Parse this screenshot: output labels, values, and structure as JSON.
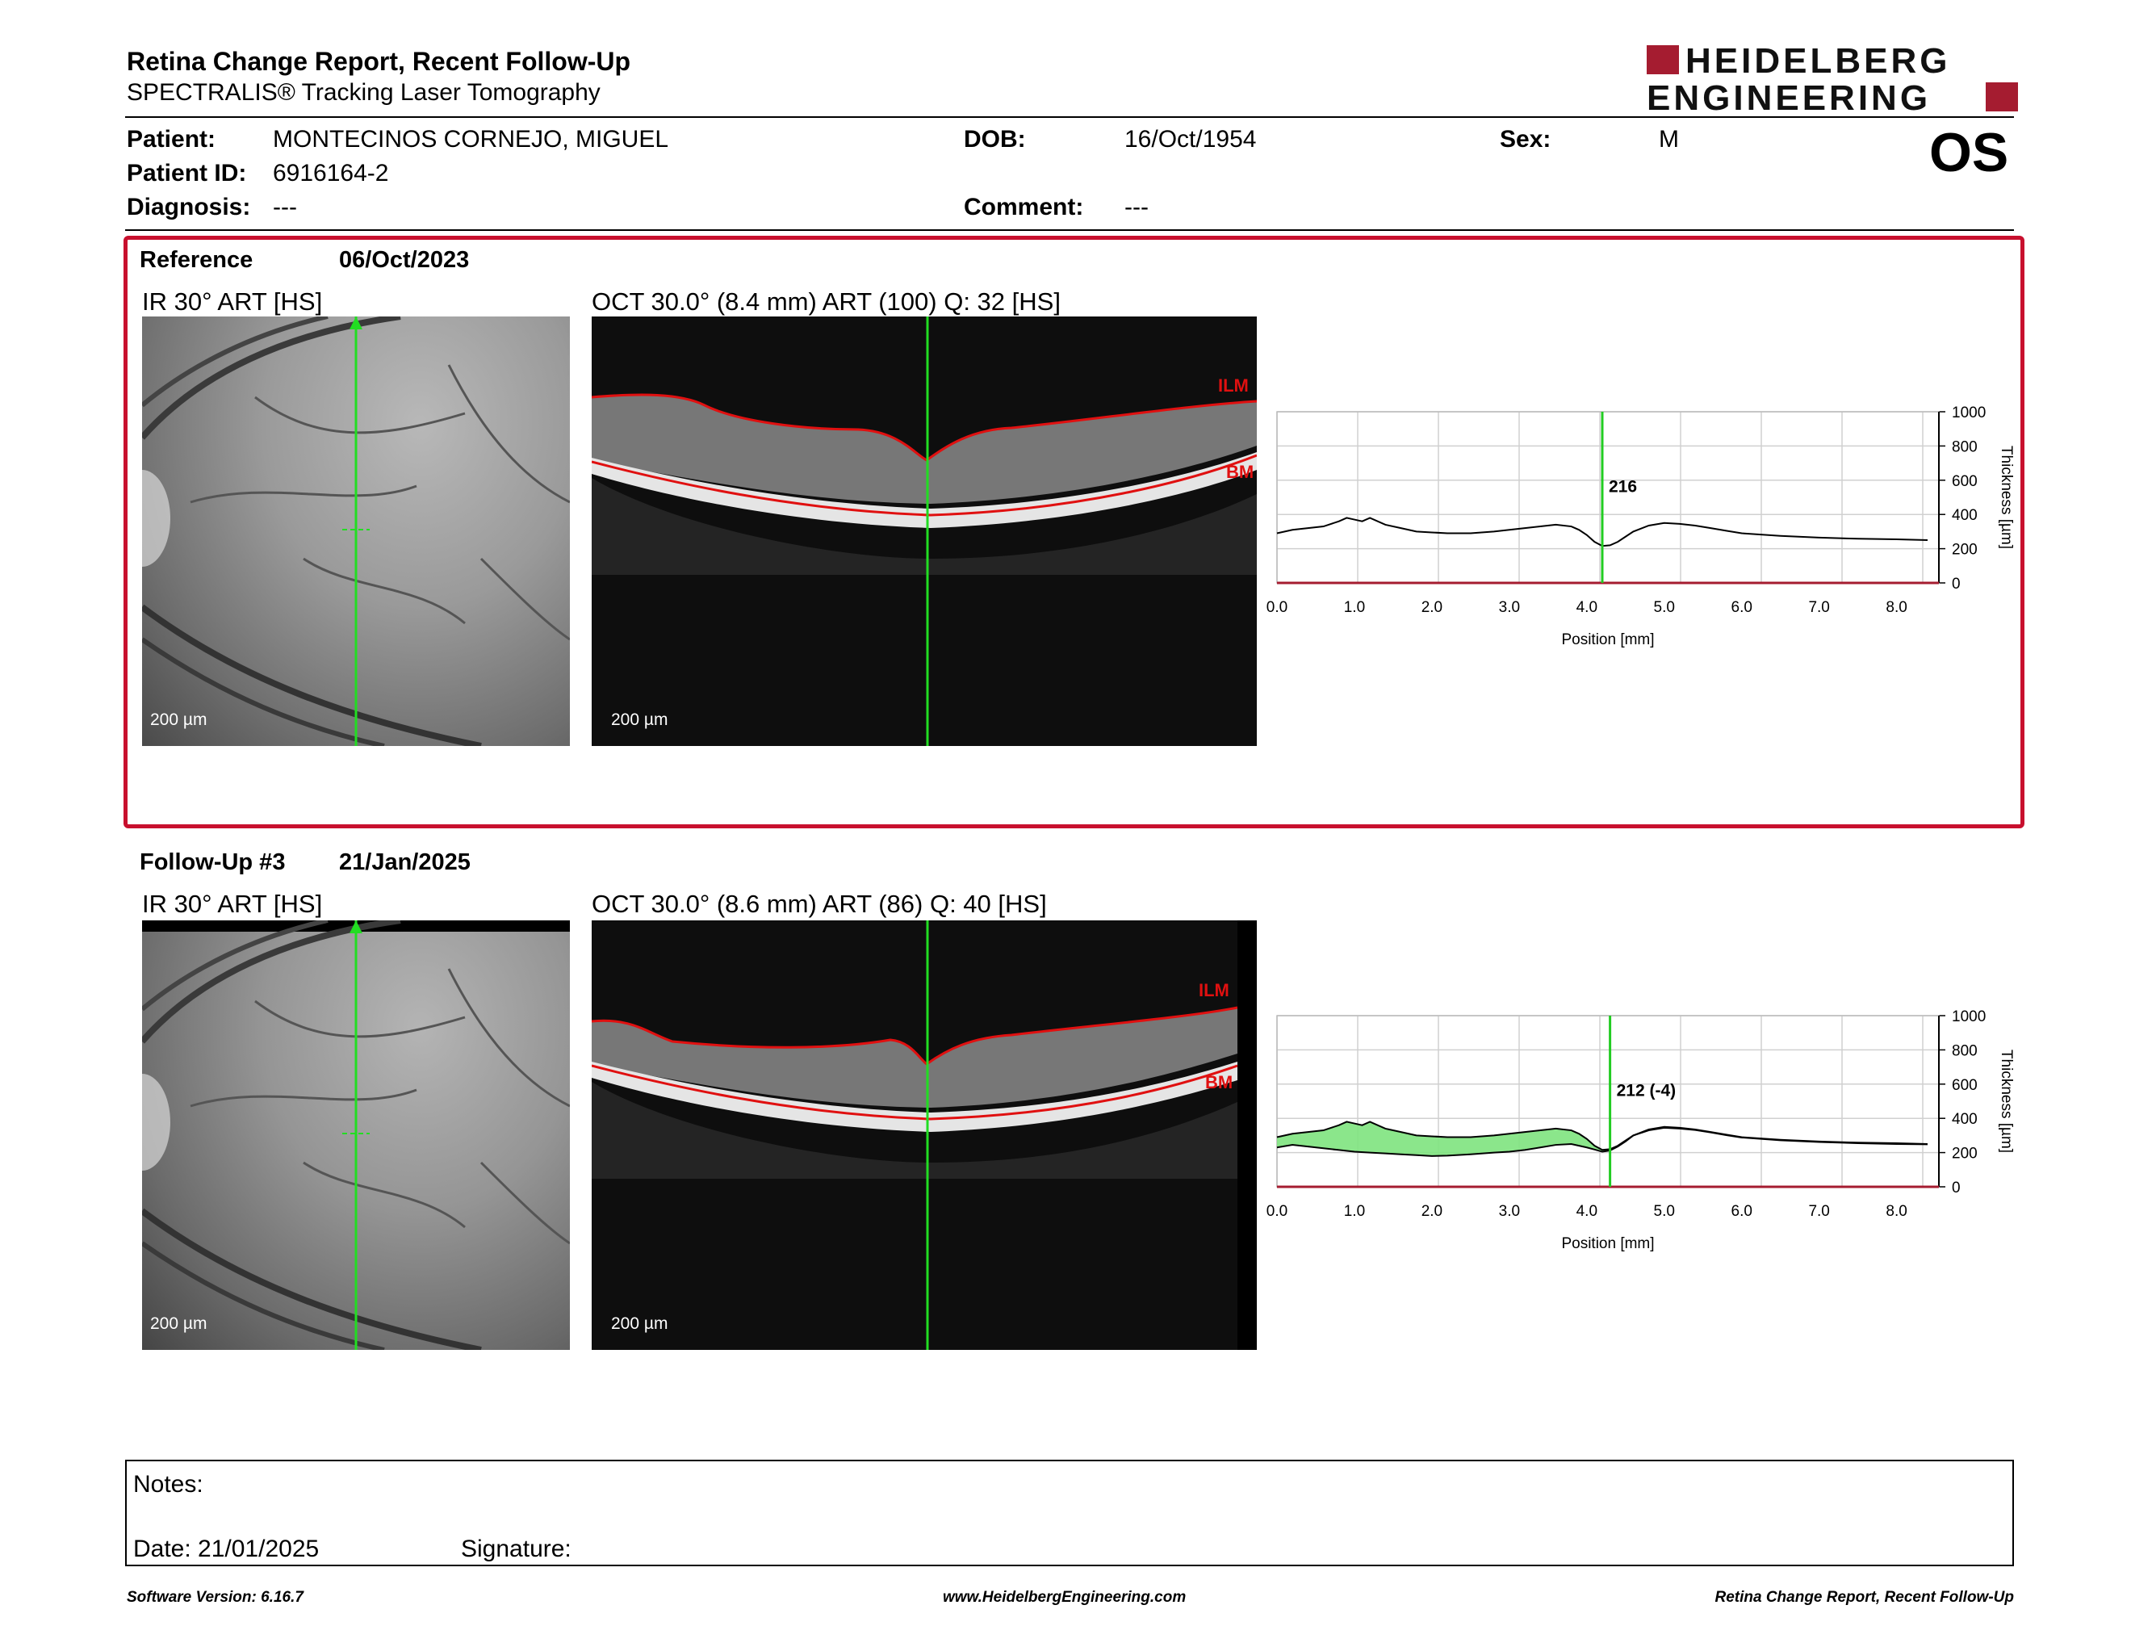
{
  "header": {
    "title": "Retina Change Report, Recent Follow-Up",
    "subtitle": "SPECTRALIS® Tracking Laser Tomography",
    "logo_line1": "HEIDELBERG",
    "logo_line2": "ENGINEERING",
    "eye": "OS"
  },
  "patient": {
    "patient_label": "Patient:",
    "patient_value": "MONTECINOS CORNEJO, MIGUEL",
    "id_label": "Patient ID:",
    "id_value": "6916164-2",
    "diagnosis_label": "Diagnosis:",
    "diagnosis_value": "---",
    "dob_label": "DOB:",
    "dob_value": "16/Oct/1954",
    "comment_label": "Comment:",
    "comment_value": "---",
    "sex_label": "Sex:",
    "sex_value": "M"
  },
  "reference": {
    "label": "Reference",
    "date": "06/Oct/2023",
    "ir_title": "IR 30° ART [HS]",
    "oct_title": "OCT 30.0° (8.4 mm) ART (100) Q: 32 [HS]",
    "ir_scale": "200 µm",
    "oct_scale": "200 µm",
    "ilm_label": "ILM",
    "bm_label": "BM"
  },
  "followup": {
    "label": "Follow-Up #3",
    "date": "21/Jan/2025",
    "ir_title": "IR 30° ART [HS]",
    "oct_title": "OCT 30.0° (8.6 mm) ART (86) Q: 40 [HS]",
    "ir_scale": "200 µm",
    "oct_scale": "200 µm",
    "ilm_label": "ILM",
    "bm_label": "BM"
  },
  "chart_data": [
    {
      "type": "line",
      "xlabel": "Position [mm]",
      "ylabel": "Thickness [µm]",
      "xlim": [
        0,
        8.4
      ],
      "ylim": [
        0,
        1000
      ],
      "xticks": [
        "0.0",
        "1.0",
        "2.0",
        "3.0",
        "4.0",
        "5.0",
        "6.0",
        "7.0",
        "8.0"
      ],
      "yticks": [
        "0",
        "200",
        "400",
        "600",
        "800",
        "1000"
      ],
      "cursor_x": 4.2,
      "cursor_label": "216",
      "series": [
        {
          "x": [
            0,
            0.2,
            0.4,
            0.6,
            0.8,
            0.9,
            1.0,
            1.1,
            1.2,
            1.4,
            1.6,
            1.8,
            2.0,
            2.2,
            2.5,
            2.8,
            3.0,
            3.2,
            3.4,
            3.6,
            3.8,
            3.9,
            4.0,
            4.1,
            4.2,
            4.3,
            4.4,
            4.5,
            4.6,
            4.8,
            5.0,
            5.2,
            5.4,
            5.6,
            5.8,
            6.0,
            6.5,
            7.0,
            7.5,
            8.0,
            8.4
          ],
          "y": [
            290,
            310,
            320,
            330,
            360,
            380,
            370,
            360,
            380,
            340,
            320,
            300,
            295,
            290,
            290,
            300,
            310,
            320,
            330,
            340,
            330,
            310,
            280,
            240,
            216,
            220,
            240,
            270,
            300,
            335,
            350,
            345,
            335,
            320,
            305,
            290,
            275,
            265,
            258,
            255,
            250
          ]
        }
      ]
    },
    {
      "type": "area",
      "xlabel": "Position [mm]",
      "ylabel": "Thickness [µm]",
      "xlim": [
        0,
        8.4
      ],
      "ylim": [
        0,
        1000
      ],
      "xticks": [
        "0.0",
        "1.0",
        "2.0",
        "3.0",
        "4.0",
        "5.0",
        "6.0",
        "7.0",
        "8.0"
      ],
      "yticks": [
        "0",
        "200",
        "400",
        "600",
        "800",
        "1000"
      ],
      "cursor_x": 4.3,
      "cursor_label": "212 (-4)",
      "fill_color": "#7ee37e",
      "series": [
        {
          "name": "Reference",
          "x": [
            0,
            0.2,
            0.4,
            0.6,
            0.8,
            0.9,
            1.0,
            1.1,
            1.2,
            1.4,
            1.6,
            1.8,
            2.0,
            2.2,
            2.5,
            2.8,
            3.0,
            3.2,
            3.4,
            3.6,
            3.8,
            3.9,
            4.0,
            4.1,
            4.2,
            4.3,
            4.4,
            4.5,
            4.6,
            4.8,
            5.0,
            5.2,
            5.4,
            5.6,
            5.8,
            6.0,
            6.5,
            7.0,
            7.5,
            8.0,
            8.4
          ],
          "y": [
            290,
            310,
            320,
            330,
            360,
            380,
            370,
            360,
            380,
            340,
            320,
            300,
            295,
            290,
            290,
            300,
            310,
            320,
            330,
            340,
            330,
            310,
            280,
            240,
            216,
            220,
            240,
            270,
            300,
            335,
            350,
            345,
            335,
            320,
            305,
            290,
            275,
            265,
            258,
            255,
            250
          ]
        },
        {
          "name": "Follow-Up",
          "x": [
            0,
            0.2,
            0.4,
            0.6,
            0.8,
            1.0,
            1.2,
            1.4,
            1.6,
            1.8,
            2.0,
            2.2,
            2.5,
            2.8,
            3.0,
            3.2,
            3.4,
            3.6,
            3.8,
            3.9,
            4.0,
            4.1,
            4.2,
            4.3,
            4.4,
            4.5,
            4.6,
            4.8,
            5.0,
            5.2,
            5.4,
            5.6,
            5.8,
            6.0,
            6.5,
            7.0,
            7.5,
            8.0,
            8.4
          ],
          "y": [
            230,
            245,
            235,
            225,
            215,
            205,
            200,
            195,
            190,
            185,
            180,
            182,
            190,
            200,
            205,
            215,
            230,
            245,
            250,
            240,
            230,
            218,
            205,
            212,
            235,
            265,
            300,
            330,
            345,
            340,
            332,
            318,
            302,
            288,
            272,
            262,
            255,
            250,
            248
          ]
        }
      ]
    }
  ],
  "notes": {
    "notes_label": "Notes:",
    "date_label": "Date: 21/01/2025",
    "signature_label": "Signature:"
  },
  "footer": {
    "software": "Software Version: 6.16.7",
    "website": "www.HeidelbergEngineering.com",
    "report_name": "Retina Change Report, Recent Follow-Up"
  }
}
